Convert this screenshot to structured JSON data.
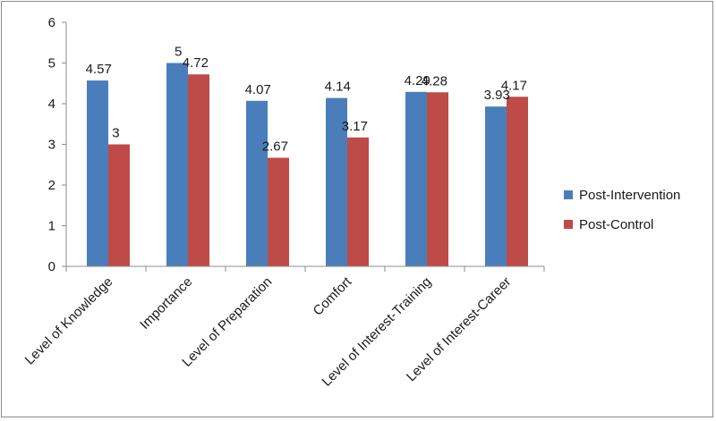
{
  "chart_data": {
    "type": "bar",
    "title": "",
    "xlabel": "",
    "ylabel": "",
    "ylim": [
      0,
      6
    ],
    "yticks": [
      0,
      1,
      2,
      3,
      4,
      5,
      6
    ],
    "grid": false,
    "legend_position": "right",
    "categories": [
      "Level of Knowledge",
      "Importance",
      "Level of Preparation",
      "Comfort",
      "Level of Interest-Training",
      "Level of Interest-Career"
    ],
    "series": [
      {
        "name": "Post-Intervention",
        "color": "#4a7ebb",
        "values": [
          4.57,
          5,
          4.07,
          4.14,
          4.29,
          3.93
        ],
        "labels": [
          "4.57",
          "5",
          "4.07",
          "4.14",
          "4.29",
          "3.93"
        ]
      },
      {
        "name": "Post-Control",
        "color": "#be4b48",
        "values": [
          3,
          4.72,
          2.67,
          3.17,
          4.28,
          4.17
        ],
        "labels": [
          "3",
          "4.72",
          "2.67",
          "3.17",
          "4.28",
          "4.17"
        ]
      }
    ]
  }
}
